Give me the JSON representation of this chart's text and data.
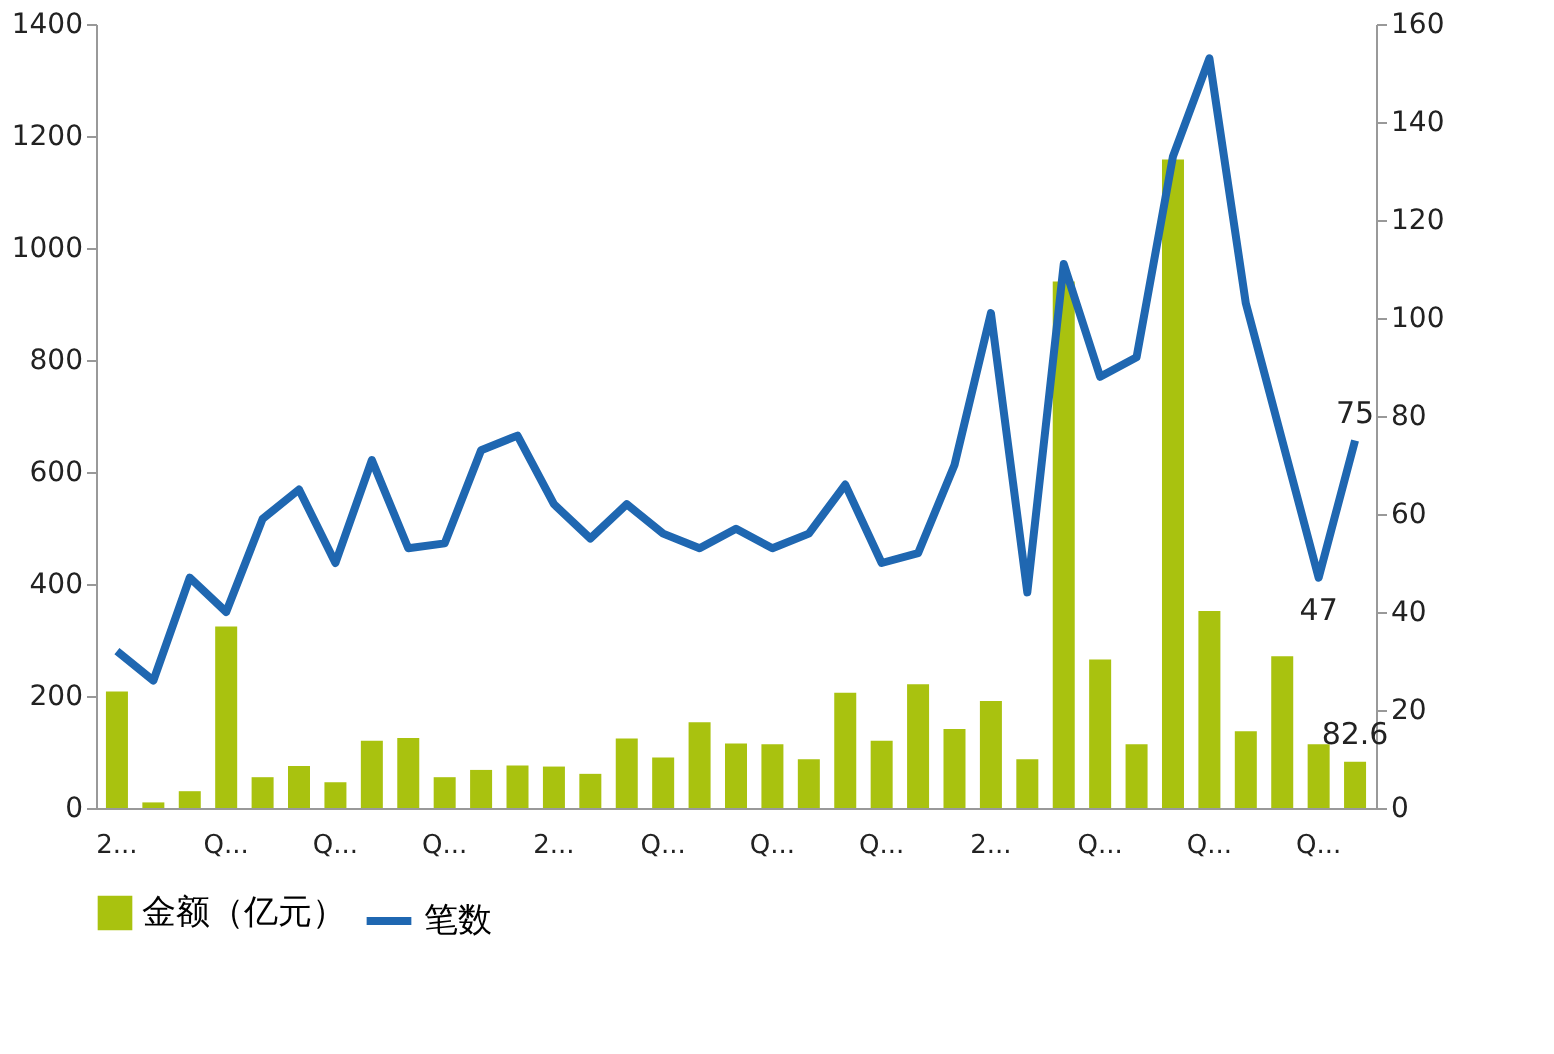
{
  "chart_data": {
    "type": "bar",
    "categories": [
      "2...",
      null,
      null,
      "Q...",
      null,
      null,
      "Q...",
      null,
      null,
      "Q...",
      null,
      null,
      "2...",
      null,
      null,
      "Q...",
      null,
      null,
      "Q...",
      null,
      null,
      "Q...",
      null,
      null,
      "2...",
      null,
      null,
      "Q...",
      null,
      null,
      "Q...",
      null,
      null,
      "Q...",
      null
    ],
    "series": [
      {
        "name": "金额（亿元）",
        "color": "#a9c20f",
        "values": [
          208,
          10,
          30,
          324,
          55,
          75,
          46,
          120,
          125,
          55,
          68,
          76,
          74,
          61,
          124,
          90,
          153,
          115,
          114,
          87,
          206,
          120,
          221,
          141,
          191,
          87,
          940,
          265,
          114,
          1158,
          352,
          137,
          271,
          114,
          82.6
        ],
        "value_labels": [
          null,
          null,
          null,
          null,
          null,
          null,
          null,
          null,
          null,
          null,
          null,
          null,
          null,
          null,
          null,
          null,
          null,
          null,
          null,
          null,
          null,
          null,
          null,
          null,
          null,
          null,
          null,
          null,
          null,
          null,
          null,
          null,
          null,
          null,
          "82.6"
        ]
      },
      {
        "name": "笔数",
        "type": "line",
        "axis": "y2",
        "color": "#1f67b1",
        "values": [
          32,
          26,
          47,
          40,
          59,
          65,
          50,
          71,
          53,
          54,
          73,
          76,
          62,
          55,
          62,
          56,
          53,
          57,
          53,
          56,
          66,
          50,
          52,
          70,
          101,
          44,
          111,
          88,
          92,
          133,
          153,
          103,
          75,
          47,
          75
        ],
        "value_labels": [
          null,
          null,
          null,
          null,
          null,
          null,
          null,
          null,
          null,
          null,
          null,
          null,
          null,
          null,
          null,
          null,
          null,
          null,
          null,
          null,
          null,
          null,
          null,
          null,
          null,
          null,
          null,
          null,
          null,
          null,
          null,
          null,
          null,
          "47",
          "75"
        ]
      }
    ],
    "ylim": [
      0,
      1400
    ],
    "yticks": [
      0,
      200,
      400,
      600,
      800,
      1000,
      1200,
      1400
    ],
    "y2lim": [
      0,
      160
    ],
    "y2ticks": [
      0,
      20,
      40,
      60,
      80,
      100,
      120,
      140,
      160
    ],
    "legend": "bottom",
    "grid": false,
    "marker": "none",
    "line_style": "solid"
  }
}
